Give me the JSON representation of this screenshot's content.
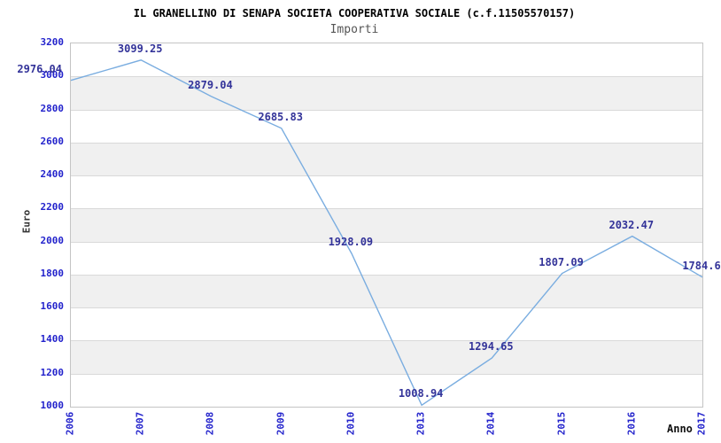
{
  "title": "IL GRANELLINO DI SENAPA SOCIETA COOPERATIVA SOCIALE (c.f.11505570157)",
  "subtitle": "Importi",
  "chart_data": {
    "type": "line",
    "title": "IL GRANELLINO DI SENAPA SOCIETA COOPERATIVA SOCIALE (c.f.11505570157)",
    "subtitle": "Importi",
    "xlabel": "Anno",
    "ylabel": "Euro",
    "categories": [
      "2006",
      "2007",
      "2008",
      "2009",
      "2010",
      "2013",
      "2014",
      "2015",
      "2016",
      "2017"
    ],
    "values": [
      2976.04,
      3099.25,
      2879.04,
      2685.83,
      1928.09,
      1008.94,
      1294.65,
      1807.09,
      2032.47,
      1784.6
    ],
    "point_labels": [
      "2976.04",
      "3099.25",
      "2879.04",
      "2685.83",
      "1928.09",
      "1008.94",
      "1294.65",
      "1807.09",
      "2032.47",
      "1784.6"
    ],
    "point_label_anchors": [
      "end",
      "middle",
      "middle",
      "middle",
      "middle",
      "middle",
      "middle",
      "middle",
      "middle",
      "middle"
    ],
    "ylim": [
      1000,
      3200
    ],
    "yticks": [
      3200,
      3000,
      2800,
      2600,
      2400,
      2200,
      2000,
      1800,
      1600,
      1400,
      1200,
      1000
    ],
    "grid": "horizontal-bands",
    "legend": "none",
    "colors": {
      "line": "#7aade0",
      "value_label": "#333399",
      "tick_label": "#2323cc",
      "title": "#000000",
      "subtitle": "#555555",
      "band_fill": "#f0f0f0",
      "gridline": "#d9d9d9",
      "plot_border": "#c4c4c4",
      "axis_title": "#333333",
      "background": "#ffffff"
    }
  }
}
